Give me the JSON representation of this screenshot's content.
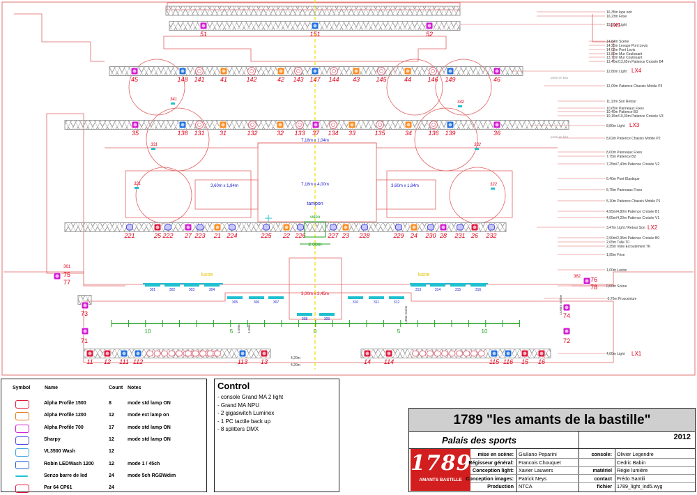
{
  "heights": [
    "16,35m laps noir",
    "16,23m Frise",
    "15,90m Light",
    "14,84m Scène",
    "14,25m Levage Pont Levis",
    "14,02m Pont Levis",
    "13,80m Mur Coulissant",
    "13,70m Mur Coulissant",
    "13,40m/13,65m Patience Croisée B4",
    "12,80m Light",
    "12,00m Patience Chassis Mobile P3",
    "11,10m Son Retour",
    "10,65m Panneaux Fixes",
    "10,40m Patience B3",
    "10,15m/10,30m Patience Croisée V3",
    "8,80m Light",
    "8,62m Patience Chassis Mobile P2",
    "8,00m Panneaux Fixes",
    "7,75m Patience B2",
    "7,25m/7,40m Patience Croisée V2",
    "6,40m Pont Elastique",
    "5,75m Panneaux Fixes",
    "5,10m Patience Chassis Mobile P1",
    "4,95m/4,80m Patience Croisée B1",
    "4,05m/4,20m Patience Croisée V1",
    "3,47m Light / Retour Son",
    "2,90m/2,95m Patience Croisée B0",
    "2,65m Tulle T0",
    "2,35m Voile Ecroulement TK",
    "1,95m Frise",
    "1,00m Lustre",
    "0,00m Scène",
    "-0,70m Proscenium",
    "4,00m Light"
  ],
  "truss_labels": {
    "lx5": "LX5",
    "lx4": "LX4",
    "lx3": "LX3",
    "lx2": "LX2",
    "lx1": "LX1"
  },
  "lx5": [
    "51",
    "151",
    "52"
  ],
  "lx4": [
    "45",
    "148",
    "141",
    "41",
    "142",
    "42",
    "143",
    "147",
    "144",
    "43",
    "145",
    "44",
    "146",
    "149",
    "46"
  ],
  "lx3": [
    "35",
    "138",
    "131",
    "31",
    "132",
    "32",
    "133",
    "37",
    "134",
    "33",
    "135",
    "34",
    "136",
    "139",
    "36"
  ],
  "lx2": [
    "221",
    "25",
    "222",
    "27",
    "223",
    "21",
    "224",
    "225",
    "22",
    "226",
    "227",
    "23",
    "228",
    "229",
    "24",
    "230",
    "28",
    "231",
    "26",
    "232"
  ],
  "lx1_left": [
    "11",
    "12",
    "111",
    "112",
    "113",
    "13"
  ],
  "lx1_right": [
    "14",
    "114",
    "115",
    "116",
    "15",
    "16"
  ],
  "side_units": [
    "361",
    "75",
    "77",
    "362",
    "76",
    "78",
    "73",
    "71",
    "74",
    "72"
  ],
  "ground_units": [
    "301",
    "302",
    "303",
    "304",
    "305",
    "306",
    "307",
    "308",
    "309",
    "310",
    "311",
    "312",
    "313",
    "314",
    "315",
    "316"
  ],
  "hazers": [
    "341",
    "342",
    "331",
    "332",
    "321",
    "322"
  ],
  "floor_labels": {
    "screen1": "7,18m x 1,04m",
    "screen2": "7,18m x 4,00m",
    "screen_l": "3,60m x 1,84m",
    "screen_r": "3,60m x 1,84m",
    "tampon": "tampon",
    "video": "vidéo",
    "width_2m": "2.00m",
    "proj": "3,00m x 2,45m",
    "lustre_l": "lustre",
    "lustre_r": "lustre",
    "scale": [
      "10",
      "5",
      "0",
      "5",
      "10"
    ],
    "pendrill_l": "porte en bas",
    "pendrill_r": "porte en bas",
    "h1": "4,20m",
    "h2": "4,20m",
    "s1": "4,50m",
    "s2": "4,50m",
    "s3": "14,00m Scène",
    "s4": "4,80m Scène"
  },
  "legend": {
    "headers": [
      "Symbol",
      "Name",
      "Count",
      "Notes"
    ],
    "rows": [
      {
        "name": "Alpha Profile 1500",
        "count": "8",
        "notes": "mode std lamp ON",
        "icon": "profile-1500-icon",
        "color": "#e01a3c"
      },
      {
        "name": "Alpha Profile 1200",
        "count": "12",
        "notes": "mode ext lamp on",
        "icon": "profile-1200-icon",
        "color": "#e07a1a"
      },
      {
        "name": "Alpha Profile 700",
        "count": "17",
        "notes": "mode std lamp ON",
        "icon": "profile-700-icon",
        "color": "#d21ad2"
      },
      {
        "name": "Sharpy",
        "count": "12",
        "notes": "mode std lamp ON",
        "icon": "sharpy-icon",
        "color": "#5050e0"
      },
      {
        "name": "VL3500 Wash",
        "count": "12",
        "notes": "",
        "icon": "wash-icon",
        "color": "#40a0e0"
      },
      {
        "name": "Robin LEDWash 1200",
        "count": "12",
        "notes": "mode 1 / 45ch",
        "icon": "ledwash-icon",
        "color": "#2060d0"
      },
      {
        "name": "Senzo barre de led",
        "count": "24",
        "notes": "mode 5ch RGBWdim",
        "icon": "ledbar-icon",
        "color": "#20c0d0"
      },
      {
        "name": "Par 64 CP61",
        "count": "24",
        "notes": "",
        "icon": "par64-icon",
        "color": "#e01a3c"
      }
    ]
  },
  "control": {
    "title": "Control",
    "items": [
      "- console Grand MA 2 light",
      "- Grand MA NPU",
      "- 2 gigaswitch Luminex",
      "- 1 PC tactile back up",
      "- 8 splitters DMX"
    ]
  },
  "title_block": {
    "show": "1789 \"les amants de la bastille\"",
    "venue": "Palais des sports",
    "year": "2012",
    "logo_big": "1789",
    "logo_small": "AMANTS BASTILLE",
    "left_labels": [
      "mise en scène:",
      "Régisseur général:",
      "Conception light:",
      "Conception images:",
      "Production"
    ],
    "left_values": [
      "Giuliano Peparini",
      "Francois Chouquet",
      "Xavier Lauwers",
      "Patrick Neys",
      "NTCA"
    ],
    "right_labels": [
      "console:",
      "",
      "matériel",
      "contact",
      "fichier"
    ],
    "right_values": [
      "Olivier Legendre",
      "Cedric Babin",
      "Régie lumière",
      "Frédo Santili",
      "1789_light_ind5.wyg"
    ]
  },
  "colors": {
    "truss": "#9a9a9a",
    "number": "#e0001a",
    "dim": "#1a1acc",
    "red_line": "#e06060",
    "green": "#20a020",
    "axis": "#f0e000"
  }
}
